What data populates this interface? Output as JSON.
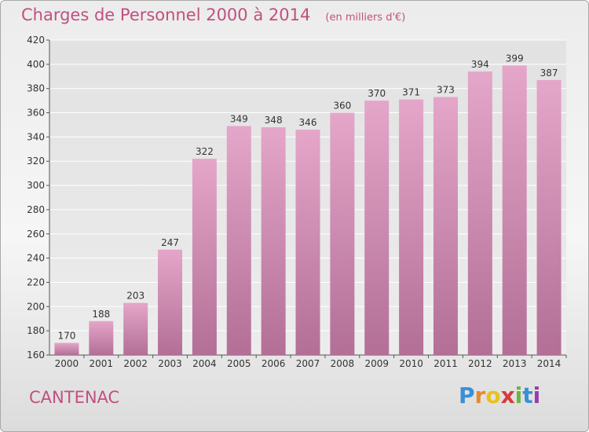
{
  "header": {
    "title": "Charges de Personnel 2000 à 2014",
    "subtitle": "(en milliers d'€)"
  },
  "footer": {
    "commune": "CANTENAC"
  },
  "logo": {
    "text": "Proxiti",
    "colors": [
      "#3a8fd6",
      "#e8892a",
      "#e8c21a",
      "#d63a3a",
      "#6cb33f",
      "#3a8fd6",
      "#9b3ab0"
    ]
  },
  "colors": {
    "bar_top": "#e4a6c9",
    "bar_bottom": "#b36f96",
    "accent": "#c0507f",
    "axis": "#555555",
    "grid": "#ffffff"
  },
  "chart_data": {
    "type": "bar",
    "categories": [
      "2000",
      "2001",
      "2002",
      "2003",
      "2004",
      "2005",
      "2006",
      "2007",
      "2008",
      "2009",
      "2010",
      "2011",
      "2012",
      "2013",
      "2014"
    ],
    "values": [
      170,
      188,
      203,
      247,
      322,
      349,
      348,
      346,
      360,
      370,
      371,
      373,
      394,
      399,
      387
    ],
    "title": "Charges de Personnel 2000 à 2014",
    "xlabel": "",
    "ylabel": "",
    "ylim": [
      160,
      420
    ],
    "yticks": [
      160,
      180,
      200,
      220,
      240,
      260,
      280,
      300,
      320,
      340,
      360,
      380,
      400,
      420
    ],
    "grid": true,
    "legend": "none"
  }
}
